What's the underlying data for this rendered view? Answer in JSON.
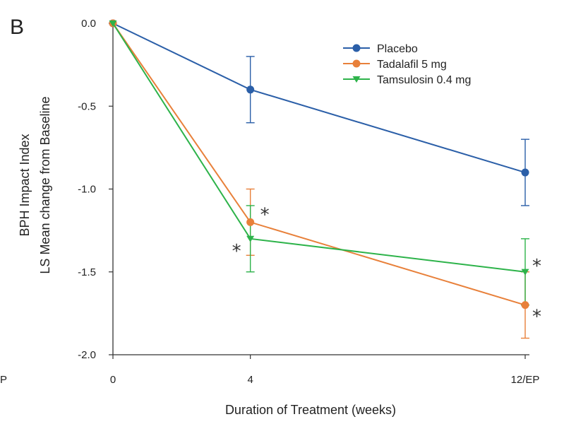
{
  "panel_label": "B",
  "edge_fragment": "P",
  "chart_data": {
    "type": "line",
    "title": "",
    "xlabel": "Duration of Treatment (weeks)",
    "ylabel_lines": [
      "BPH Impact Index",
      "LS Mean change from Baseline"
    ],
    "ylim": [
      -2.0,
      0.0
    ],
    "yticks": [
      0.0,
      -0.5,
      -1.0,
      -1.5,
      -2.0
    ],
    "ytick_labels": [
      "0.0",
      "-0.5",
      "-1.0",
      "-1.5",
      "-2.0"
    ],
    "xticks": [
      0,
      4,
      12
    ],
    "xtick_labels": [
      "0",
      "4",
      "12/EP"
    ],
    "legend_position": "top-right",
    "series": [
      {
        "name": "Placebo",
        "color": "#2b5fa8",
        "marker": "circle",
        "x": [
          0,
          4,
          12
        ],
        "y": [
          0.0,
          -0.4,
          -0.9
        ],
        "err": [
          0,
          0.2,
          0.2
        ],
        "significant": [
          false,
          false,
          false
        ]
      },
      {
        "name": "Tadalafil 5 mg",
        "color": "#e8803a",
        "marker": "circle",
        "x": [
          0,
          4,
          12
        ],
        "y": [
          0.0,
          -1.2,
          -1.7
        ],
        "err": [
          0,
          0.2,
          0.2
        ],
        "significant": [
          false,
          true,
          true
        ]
      },
      {
        "name": "Tamsulosin 0.4 mg",
        "color": "#2db34a",
        "marker": "triangle-down",
        "x": [
          0,
          4,
          12
        ],
        "y": [
          0.0,
          -1.3,
          -1.5
        ],
        "err": [
          0,
          0.2,
          0.2
        ],
        "significant": [
          false,
          true,
          true
        ]
      }
    ],
    "significance_marker": "*"
  }
}
